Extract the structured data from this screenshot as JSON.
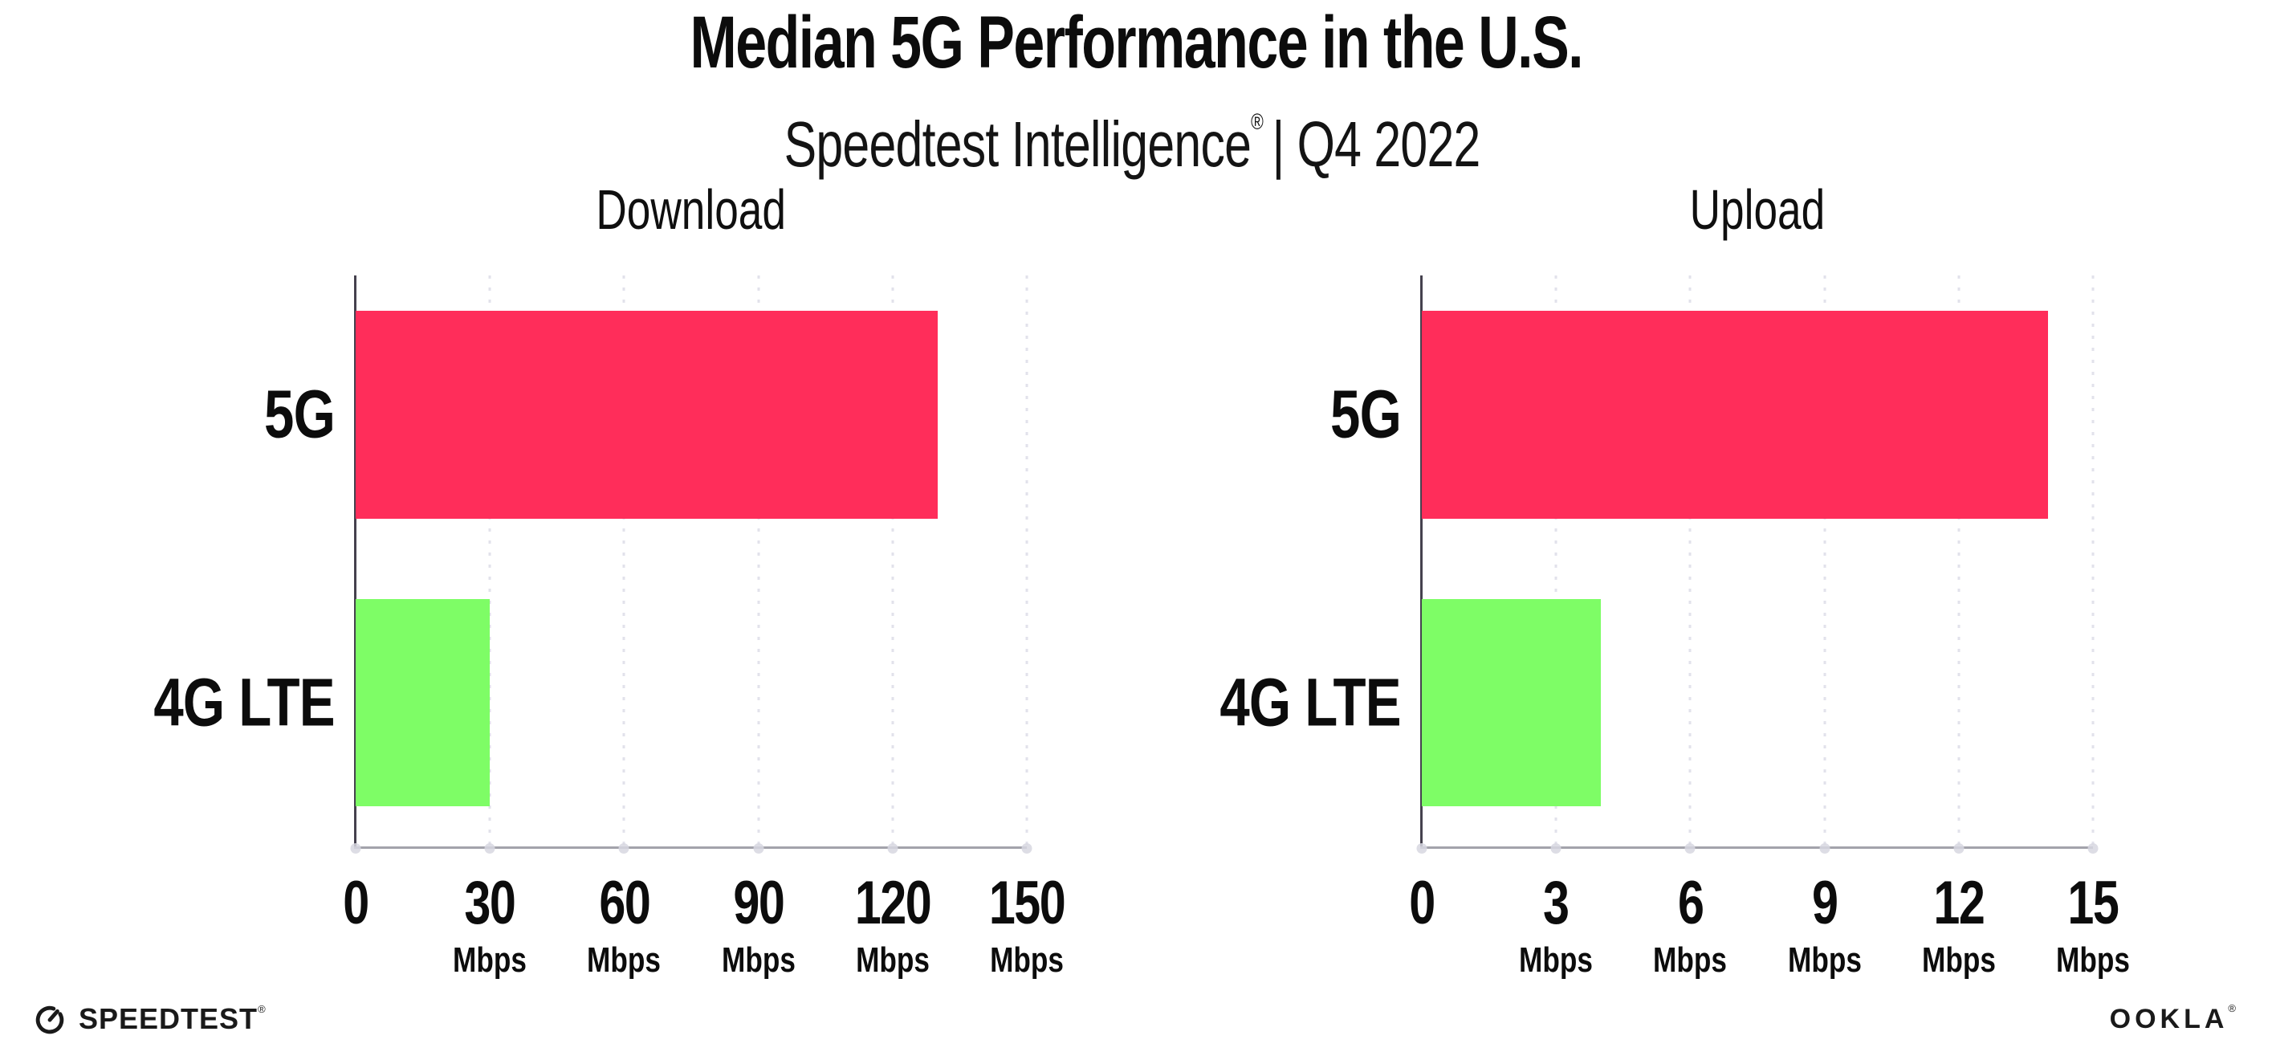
{
  "header": {
    "title": "Median 5G Performance in the U.S.",
    "subtitle": {
      "brand": "Speedtest Intelligence",
      "mark": "®",
      "rest": "| Q4 2022"
    }
  },
  "chart_data": [
    {
      "type": "bar",
      "orientation": "horizontal",
      "title": "Download",
      "categories": [
        "5G",
        "4G LTE"
      ],
      "values": [
        130,
        30
      ],
      "unit": "Mbps",
      "xlim": [
        0,
        150
      ],
      "xticks": [
        0,
        30,
        60,
        90,
        120,
        150
      ],
      "grid": "dotted-vertical",
      "legend": "none"
    },
    {
      "type": "bar",
      "orientation": "horizontal",
      "title": "Upload",
      "categories": [
        "5G",
        "4G LTE"
      ],
      "values": [
        14,
        4
      ],
      "unit": "Mbps",
      "xlim": [
        0,
        15
      ],
      "xticks": [
        0,
        3,
        6,
        9,
        12,
        15
      ],
      "grid": "dotted-vertical",
      "legend": "none"
    }
  ],
  "colors": {
    "bar_5g": "#FF2D5A",
    "bar_4g_lte": "#7EFD66",
    "gridline": "#E2E2EB",
    "x_axis": "#A3A3AB",
    "y_axis": "#45414E",
    "text": "#0C0C0C"
  },
  "footer": {
    "speedtest": "SPEEDTEST",
    "speedtest_mark": "®",
    "ookla": "OOKLA",
    "ookla_mark": "®"
  }
}
